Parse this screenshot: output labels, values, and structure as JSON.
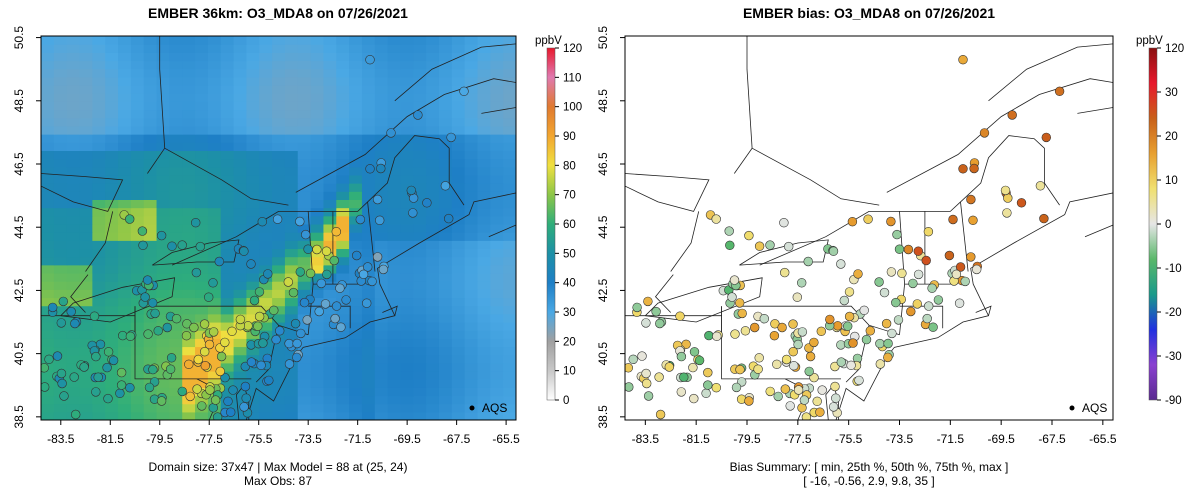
{
  "chart_data": [
    {
      "type": "heatmap",
      "title": "EMBER 36km: O3_MDA8 on 07/26/2021",
      "xticks": [
        "-83.5",
        "-81.5",
        "-79.5",
        "-77.5",
        "-75.5",
        "-73.5",
        "-71.5",
        "-69.5",
        "-67.5",
        "-65.5"
      ],
      "yticks": [
        "38.5",
        "40.5",
        "42.5",
        "44.5",
        "46.5",
        "48.5",
        "50.5"
      ],
      "xlim": [
        -84.3,
        -65.1
      ],
      "ylim": [
        38.4,
        50.55
      ],
      "colorbar": {
        "unit": "ppbV",
        "ticks": [
          "0",
          "10",
          "20",
          "30",
          "40",
          "50",
          "60",
          "70",
          "80",
          "90",
          "100",
          "110",
          "120"
        ],
        "min": 0,
        "max": 120
      },
      "legend_label": "AQS",
      "footer_lines": [
        "Domain size: 37x47 | Max Model = 88 at (25, 24)",
        "Max Obs: 87"
      ],
      "max_model": 88,
      "max_obs": 87,
      "domain_size": "37x47",
      "max_model_cell": [
        25,
        24
      ]
    },
    {
      "type": "scatter",
      "title": "EMBER bias: O3_MDA8 on 07/26/2021",
      "xticks": [
        "-83.5",
        "-81.5",
        "-79.5",
        "-77.5",
        "-75.5",
        "-73.5",
        "-71.5",
        "-69.5",
        "-67.5",
        "-65.5"
      ],
      "yticks": [
        "38.5",
        "40.5",
        "42.5",
        "44.5",
        "46.5",
        "48.5",
        "50.5"
      ],
      "xlim": [
        -84.3,
        -65.1
      ],
      "ylim": [
        38.4,
        50.55
      ],
      "colorbar": {
        "unit": "ppbV",
        "ticks": [
          "120",
          "30",
          "20",
          "10",
          "0",
          "-10",
          "-20",
          "-30",
          "-90"
        ]
      },
      "legend_label": "AQS",
      "footer_lines": [
        "Bias Summary: [ min, 25th %, 50th %, 75th %, max ]",
        "[ -16,   -0.56,   2.9,   9.8,   35 ]"
      ],
      "bias_summary": {
        "min": -16,
        "p25": -0.56,
        "p50": 2.9,
        "p75": 9.8,
        "max": 35
      }
    }
  ],
  "colors": {
    "bias_high": "#e81c1c",
    "bias_mid": "#f0dc5a",
    "bias_zero": "#d8d8d8",
    "bias_low": "#30a050"
  }
}
